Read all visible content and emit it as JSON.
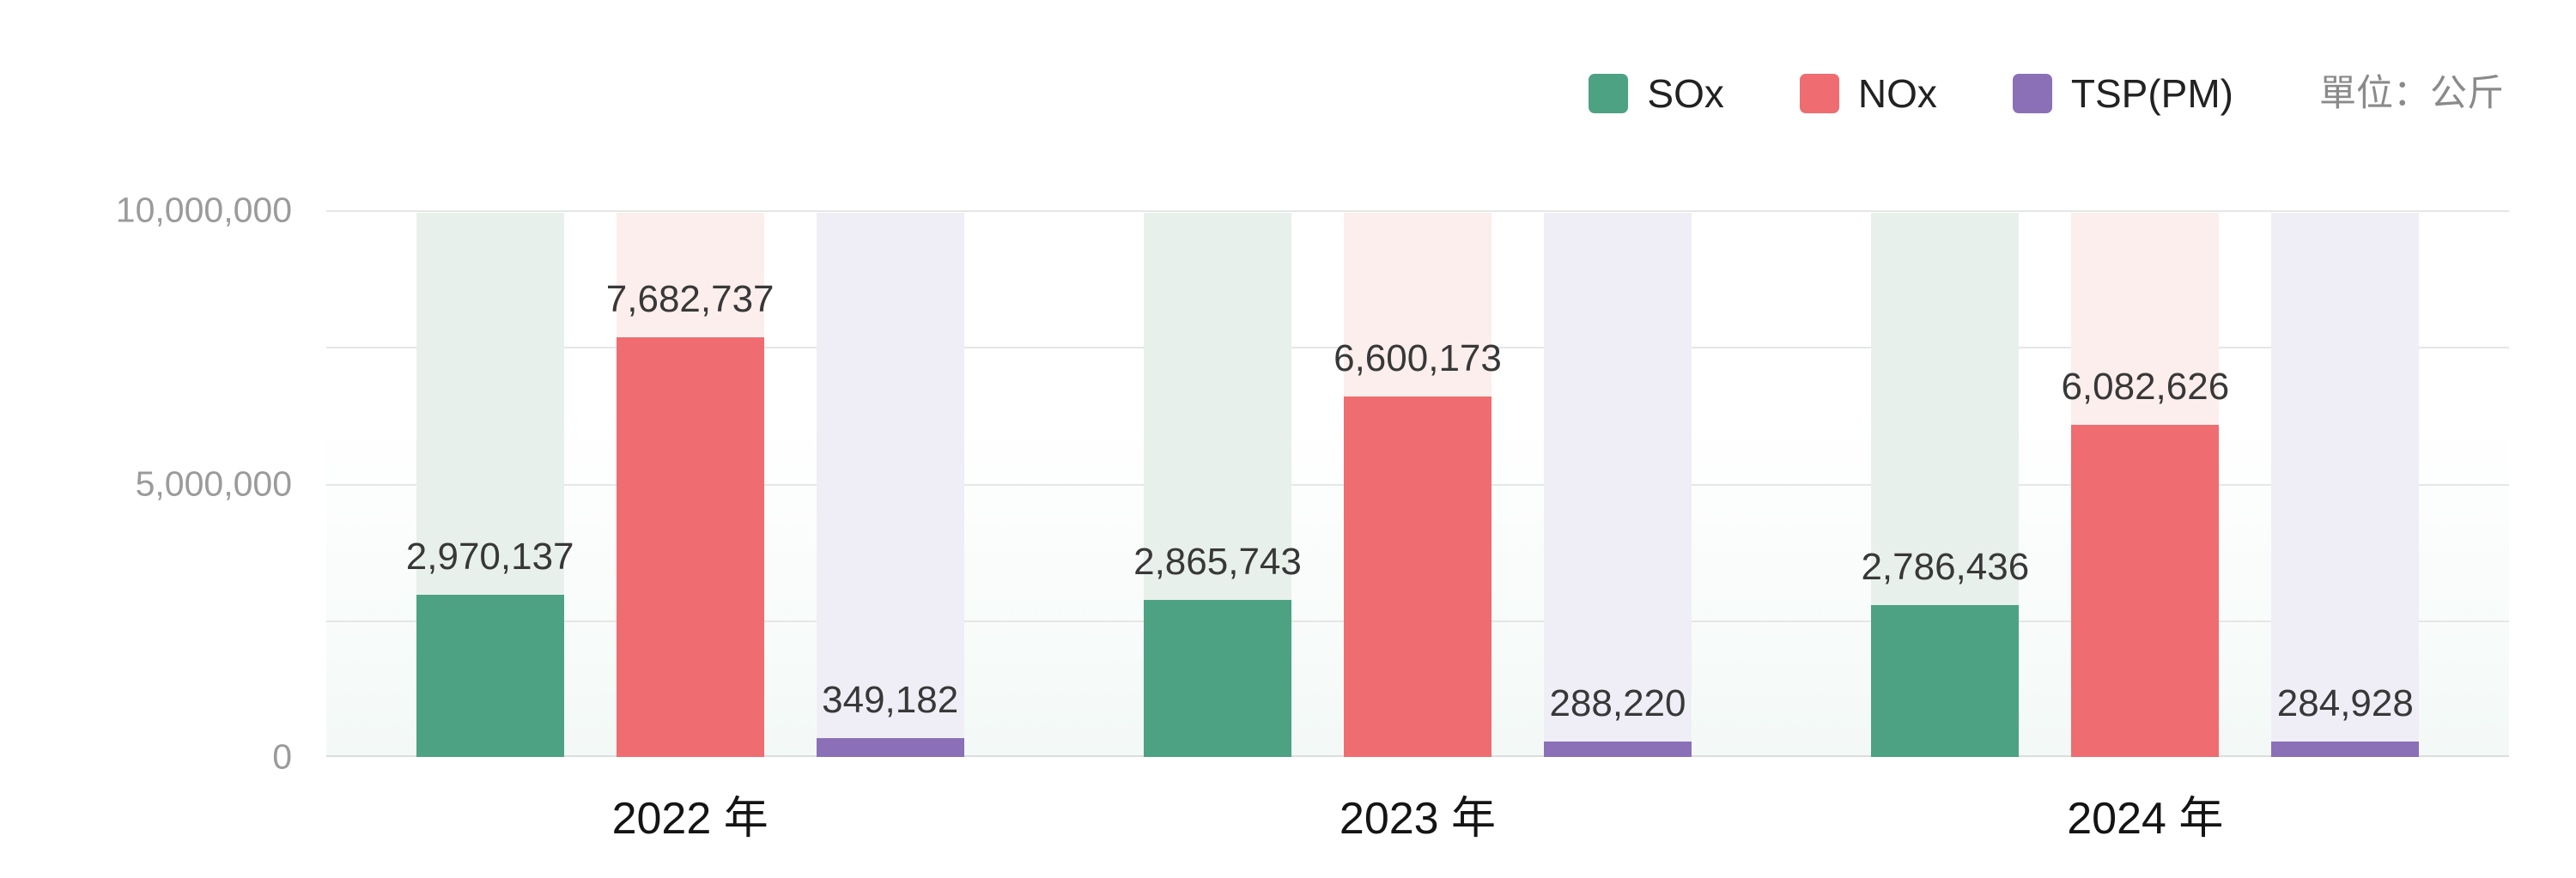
{
  "legend": {
    "items": [
      {
        "label": "SOx",
        "color": "#4DA283"
      },
      {
        "label": "NOx",
        "color": "#EF6C70"
      },
      {
        "label": "TSP(PM)",
        "color": "#8B70B8"
      }
    ],
    "unit_label": "單位：公斤"
  },
  "y_axis": {
    "tick_labels": {
      "top": "10,000,000",
      "mid": "5,000,000",
      "zero": "0"
    }
  },
  "chart_data": {
    "type": "bar",
    "title": "",
    "categories": [
      "2022 年",
      "2023 年",
      "2024 年"
    ],
    "series": [
      {
        "name": "SOx",
        "color": "#4DA283",
        "band_color": "#E8F0EB",
        "values": [
          2970137,
          2865743,
          2786436
        ],
        "value_labels": [
          "2,970,137",
          "2,865,743",
          "2,786,436"
        ]
      },
      {
        "name": "NOx",
        "color": "#EF6C70",
        "band_color": "#FCEEEC",
        "values": [
          7682737,
          6600173,
          6082626
        ],
        "value_labels": [
          "7,682,737",
          "6,600,173",
          "6,082,626"
        ]
      },
      {
        "name": "TSP(PM)",
        "color": "#8B70B8",
        "band_color": "#EFEEF6",
        "values": [
          349182,
          288220,
          284928
        ],
        "value_labels": [
          "349,182",
          "288,220",
          "284,928"
        ]
      }
    ],
    "unit": "公斤",
    "ylim": [
      0,
      10000000
    ],
    "y_ticks": [
      0,
      2500000,
      5000000,
      7500000,
      10000000
    ],
    "y_tick_labels_shown": [
      "0",
      "5,000,000",
      "10,000,000"
    ],
    "grid": true,
    "show_bar_background_bands": true,
    "legend_position": "top-right"
  }
}
